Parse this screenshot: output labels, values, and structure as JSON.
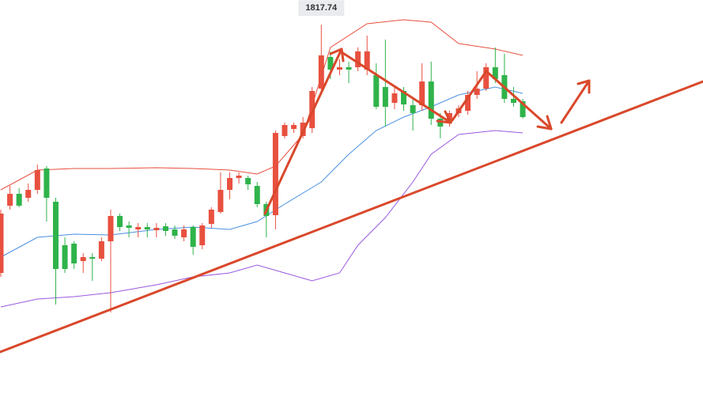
{
  "chart_data": {
    "type": "candlestick",
    "ylim": [
      1720.6,
      1824
    ],
    "up_color": "#e8503f",
    "down_color": "#2fb34a",
    "open": [
      1755.0,
      1772.0,
      1775.0,
      1774.0,
      1776.0,
      1781.4,
      1773.0,
      1762.0,
      1762.4,
      1758.0,
      1759.0,
      1758.6,
      1763.0,
      1769.4,
      1767.0,
      1766.0,
      1766.6,
      1765.8,
      1766.8,
      1766.0,
      1764.0,
      1766.6,
      1762.0,
      1767.4,
      1770.4,
      1776.0,
      1779.0,
      1779.0,
      1777.0,
      1772.4,
      1769.6,
      1789.6,
      1791.4,
      1789.6,
      1791.6,
      1801.6,
      1809.6,
      1806.4,
      1807.0,
      1807.0,
      1806.4,
      1805.0,
      1802.0,
      1798.0,
      1801.0,
      1797.4,
      1797.4,
      1803.4,
      1794.0,
      1793.0,
      1795.4,
      1796.0,
      1800.0,
      1801.6,
      1807.0,
      1805.0,
      1799.0,
      1798.4
    ],
    "high": [
      1771.0,
      1777.0,
      1776.4,
      1777.6,
      1782.4,
      1782.0,
      1774.0,
      1764.0,
      1763.0,
      1760.0,
      1760.0,
      1764.0,
      1771.0,
      1770.0,
      1768.0,
      1767.6,
      1767.6,
      1767.6,
      1767.6,
      1767.0,
      1767.0,
      1767.0,
      1767.6,
      1771.6,
      1780.4,
      1780.4,
      1780.4,
      1779.6,
      1778.0,
      1773.0,
      1791.0,
      1793.0,
      1793.0,
      1794.4,
      1802.0,
      1817.74,
      1811.0,
      1809.0,
      1808.4,
      1812.0,
      1815.0,
      1808.0,
      1814.0,
      1802.4,
      1802.0,
      1799.0,
      1808.0,
      1808.4,
      1795.4,
      1796.0,
      1797.4,
      1801.0,
      1806.0,
      1808.0,
      1812.0,
      1810.4,
      1802.0,
      1799.0
    ],
    "low": [
      1754.0,
      1771.0,
      1771.6,
      1773.0,
      1775.0,
      1768.0,
      1747.0,
      1755.0,
      1756.0,
      1755.0,
      1753.0,
      1758.0,
      1745.0,
      1765.6,
      1764.0,
      1764.0,
      1764.0,
      1764.0,
      1764.4,
      1763.6,
      1763.0,
      1759.6,
      1761.0,
      1766.4,
      1770.0,
      1773.6,
      1777.6,
      1776.0,
      1771.6,
      1764.0,
      1766.0,
      1789.0,
      1790.4,
      1789.0,
      1790.4,
      1800.4,
      1804.0,
      1805.0,
      1803.0,
      1806.0,
      1805.0,
      1796.4,
      1792.0,
      1796.4,
      1796.0,
      1791.0,
      1796.0,
      1792.4,
      1789.0,
      1792.0,
      1794.4,
      1795.0,
      1799.0,
      1801.0,
      1803.0,
      1798.0,
      1797.0,
      1794.0
    ],
    "close": [
      1770.0,
      1775.0,
      1772.0,
      1776.0,
      1781.0,
      1774.0,
      1756.0,
      1756.0,
      1757.4,
      1759.0,
      1758.6,
      1763.0,
      1769.4,
      1766.6,
      1766.4,
      1766.6,
      1766.0,
      1766.4,
      1765.6,
      1764.4,
      1766.0,
      1761.6,
      1767.0,
      1771.0,
      1776.0,
      1779.0,
      1779.6,
      1777.4,
      1772.4,
      1769.4,
      1790.4,
      1792.4,
      1792.4,
      1793.0,
      1801.0,
      1810.0,
      1806.4,
      1807.0,
      1806.4,
      1811.0,
      1811.0,
      1797.0,
      1797.0,
      1800.4,
      1797.6,
      1795.4,
      1803.4,
      1794.0,
      1792.0,
      1795.4,
      1796.6,
      1800.0,
      1801.6,
      1807.0,
      1804.0,
      1799.0,
      1798.0,
      1794.4
    ],
    "bands": [
      {
        "color": "#e8503f",
        "x": [
          0,
          4,
          8,
          12,
          17,
          21,
          25,
          28,
          30,
          33,
          36,
          40,
          44,
          47,
          50,
          54,
          57
        ],
        "values": [
          1776,
          1781,
          1781.4,
          1781.4,
          1781.6,
          1781.4,
          1781,
          1780,
          1782,
          1790,
          1812,
          1818,
          1819,
          1818.4,
          1813,
          1811.6,
          1810
        ]
      },
      {
        "color": "#4a90e2",
        "x": [
          0,
          4,
          8,
          12,
          17,
          21,
          25,
          28,
          31,
          35,
          38,
          41,
          44,
          47,
          50,
          54,
          57
        ],
        "values": [
          1759,
          1764,
          1764.8,
          1764.6,
          1766,
          1766.6,
          1766,
          1768,
          1772.4,
          1778,
          1785,
          1791,
          1794.4,
          1797,
          1800,
          1802,
          1800.4
        ]
      },
      {
        "color": "#9b59e0",
        "x": [
          0,
          4,
          8,
          12,
          17,
          21,
          25,
          28,
          31,
          34,
          37,
          39,
          42,
          45,
          47,
          50,
          54,
          57
        ],
        "values": [
          1746.4,
          1748.4,
          1749,
          1750,
          1752,
          1754,
          1755,
          1757,
          1755,
          1753,
          1755,
          1762,
          1769,
          1778,
          1785,
          1790,
          1791,
          1790.4
        ]
      }
    ],
    "max_label": {
      "value": 1817.74,
      "label": "1817.74"
    }
  }
}
